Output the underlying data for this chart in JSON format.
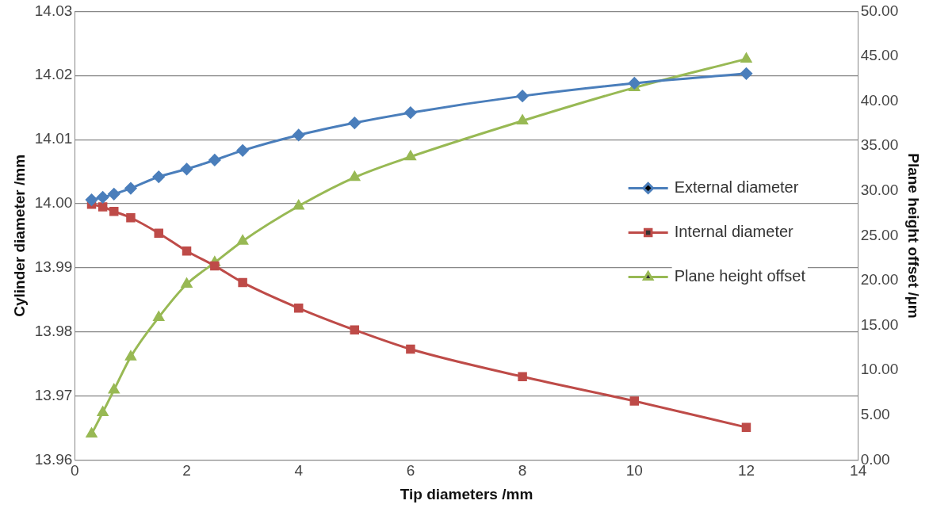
{
  "chart_data": {
    "type": "line",
    "xlabel": "Tip diameters /mm",
    "ylabel": "Cylinder diameter /mm",
    "y2label": "Plane height offset /µm",
    "x": [
      0.3,
      0.5,
      0.7,
      1,
      1.5,
      2,
      2.5,
      3,
      4,
      5,
      6,
      8,
      10,
      12
    ],
    "series": [
      {
        "name": "External diameter",
        "color": "#4a7ebb",
        "marker": "diamond",
        "values": [
          14.0006,
          14.001,
          14.0015,
          14.0024,
          14.0042,
          14.0054,
          14.0068,
          14.0083,
          14.0107,
          14.0126,
          14.0142,
          14.0168,
          14.0188,
          14.0203
        ]
      },
      {
        "name": "Internal diameter",
        "color": "#be4b48",
        "marker": "square",
        "values": [
          13.9999,
          13.9995,
          13.9988,
          13.9978,
          13.9954,
          13.9926,
          13.9903,
          13.9877,
          13.9837,
          13.9803,
          13.9773,
          13.973,
          13.9692,
          13.9651
        ]
      },
      {
        "name": "Plane height offset",
        "color": "#98b954",
        "marker": "triangle",
        "axis": "y2",
        "values": [
          2.9,
          5.3,
          7.8,
          11.5,
          15.9,
          19.6,
          22.0,
          24.4,
          28.3,
          31.5,
          33.8,
          37.8,
          41.5,
          44.7
        ]
      }
    ],
    "xlim": [
      0,
      14
    ],
    "xticks": [
      0,
      2,
      4,
      6,
      8,
      10,
      12,
      14
    ],
    "ylim": [
      13.96,
      14.03
    ],
    "yticks": [
      {
        "value": 13.96,
        "label": "13.96"
      },
      {
        "value": 13.97,
        "label": "13.97"
      },
      {
        "value": 13.98,
        "label": "13.98"
      },
      {
        "value": 13.99,
        "label": "13.99"
      },
      {
        "value": 14,
        "label": "14.00"
      },
      {
        "value": 14.01,
        "label": "14.01"
      },
      {
        "value": 14.02,
        "label": "14.02"
      },
      {
        "value": 14.03,
        "label": "14.03"
      }
    ],
    "y2lim": [
      0,
      50
    ],
    "y2ticks": [
      {
        "value": 0,
        "label": "0.00"
      },
      {
        "value": 5,
        "label": "5.00"
      },
      {
        "value": 10,
        "label": "10.00"
      },
      {
        "value": 15,
        "label": "15.00"
      },
      {
        "value": 20,
        "label": "20.00"
      },
      {
        "value": 25,
        "label": "25.00"
      },
      {
        "value": 30,
        "label": "30.00"
      },
      {
        "value": 35,
        "label": "35.00"
      },
      {
        "value": 40,
        "label": "40.00"
      },
      {
        "value": 45,
        "label": "45.00"
      },
      {
        "value": 50,
        "label": "50.00"
      }
    ],
    "grid": "y",
    "legend": "right",
    "line_style": "solid"
  }
}
